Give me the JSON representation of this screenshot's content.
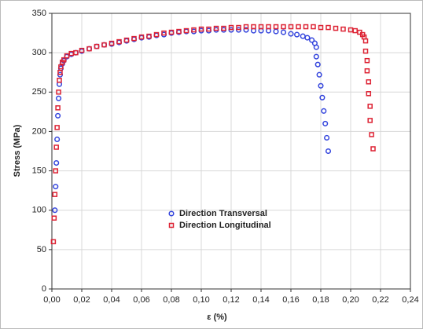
{
  "chart_data": {
    "type": "scatter",
    "xlabel": "ε (%)",
    "ylabel": "Stress (MPa)",
    "xlim": [
      0,
      0.24
    ],
    "ylim": [
      0,
      350
    ],
    "xticks": [
      {
        "value": 0,
        "label": "0,00"
      },
      {
        "value": 0.02,
        "label": "0,02"
      },
      {
        "value": 0.04,
        "label": "0,04"
      },
      {
        "value": 0.06,
        "label": "0,06"
      },
      {
        "value": 0.08,
        "label": "0,08"
      },
      {
        "value": 0.1,
        "label": "0,10"
      },
      {
        "value": 0.12,
        "label": "0,12"
      },
      {
        "value": 0.14,
        "label": "0,14"
      },
      {
        "value": 0.16,
        "label": "0,16"
      },
      {
        "value": 0.18,
        "label": "0,18"
      },
      {
        "value": 0.2,
        "label": "0,20"
      },
      {
        "value": 0.22,
        "label": "0,22"
      },
      {
        "value": 0.24,
        "label": "0,24"
      }
    ],
    "yticks": [
      0,
      50,
      100,
      150,
      200,
      250,
      300,
      350
    ],
    "legend": "center",
    "series": [
      {
        "name": "Direction Transversal",
        "color": "#3344dd",
        "marker": "circle",
        "x": [
          0.002,
          0.0025,
          0.003,
          0.0035,
          0.004,
          0.0045,
          0.005,
          0.0055,
          0.006,
          0.007,
          0.008,
          0.01,
          0.013,
          0.016,
          0.02,
          0.025,
          0.03,
          0.035,
          0.04,
          0.045,
          0.05,
          0.055,
          0.06,
          0.065,
          0.07,
          0.075,
          0.08,
          0.085,
          0.09,
          0.095,
          0.1,
          0.105,
          0.11,
          0.115,
          0.12,
          0.125,
          0.13,
          0.135,
          0.14,
          0.145,
          0.15,
          0.155,
          0.16,
          0.164,
          0.168,
          0.171,
          0.174,
          0.176,
          0.177,
          0.177,
          0.178,
          0.179,
          0.18,
          0.181,
          0.182,
          0.183,
          0.184,
          0.185
        ],
        "values": [
          100,
          130,
          160,
          190,
          220,
          242,
          260,
          272,
          280,
          286,
          290,
          295,
          298,
          300,
          302,
          305,
          308,
          310,
          311,
          313,
          315,
          317,
          319,
          320,
          322,
          323,
          325,
          326,
          327,
          327,
          328,
          328,
          329,
          329,
          329,
          329,
          329,
          328,
          328,
          328,
          327,
          326,
          324,
          323,
          321,
          319,
          316,
          312,
          307,
          295,
          285,
          272,
          258,
          243,
          226,
          210,
          192,
          175
        ]
      },
      {
        "name": "Direction Longitudinal",
        "color": "#dd2233",
        "marker": "square",
        "x": [
          0.001,
          0.0015,
          0.002,
          0.0025,
          0.003,
          0.0035,
          0.004,
          0.0045,
          0.005,
          0.0055,
          0.006,
          0.007,
          0.008,
          0.01,
          0.013,
          0.016,
          0.02,
          0.025,
          0.03,
          0.035,
          0.04,
          0.045,
          0.05,
          0.055,
          0.06,
          0.065,
          0.07,
          0.075,
          0.08,
          0.085,
          0.09,
          0.095,
          0.1,
          0.105,
          0.11,
          0.115,
          0.12,
          0.125,
          0.13,
          0.135,
          0.14,
          0.145,
          0.15,
          0.155,
          0.16,
          0.165,
          0.17,
          0.175,
          0.18,
          0.185,
          0.19,
          0.195,
          0.2,
          0.203,
          0.206,
          0.208,
          0.209,
          0.21,
          0.21,
          0.211,
          0.211,
          0.212,
          0.212,
          0.213,
          0.213,
          0.214,
          0.215
        ],
        "values": [
          60,
          90,
          120,
          150,
          180,
          205,
          230,
          250,
          265,
          275,
          282,
          288,
          291,
          296,
          299,
          300,
          303,
          305,
          308,
          310,
          312,
          314,
          316,
          318,
          320,
          321,
          323,
          325,
          326,
          327,
          328,
          329,
          330,
          330,
          331,
          331,
          332,
          332,
          333,
          333,
          333,
          333,
          333,
          333,
          333,
          333,
          333,
          333,
          332,
          332,
          331,
          330,
          329,
          328,
          326,
          323,
          320,
          315,
          302,
          290,
          277,
          263,
          248,
          232,
          214,
          196,
          178
        ]
      }
    ]
  }
}
